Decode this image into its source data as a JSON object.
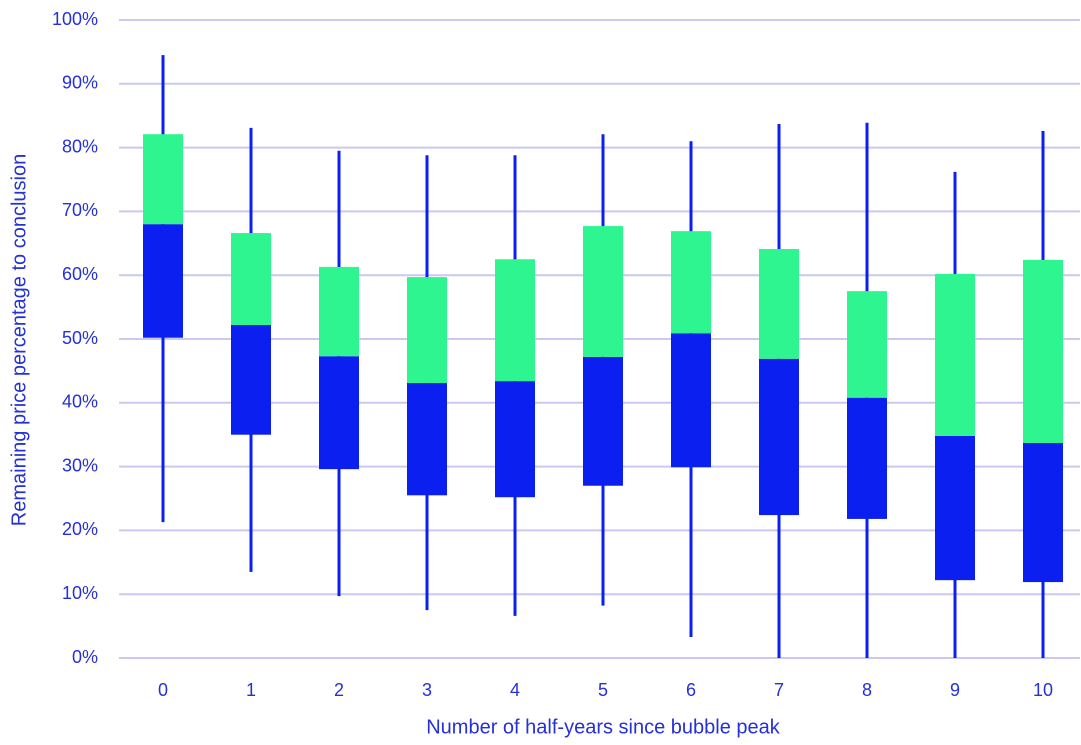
{
  "chart_data": {
    "type": "box",
    "x_label": "Number of half-years since bubble peak",
    "y_label": "Remaining price percentage to conclusion",
    "categories": [
      "0",
      "1",
      "2",
      "3",
      "4",
      "5",
      "6",
      "7",
      "8",
      "9",
      "10"
    ],
    "low": [
      21.3,
      13.5,
      9.7,
      7.5,
      6.6,
      8.2,
      3.3,
      0,
      0,
      0,
      0
    ],
    "q1": [
      50.2,
      35.0,
      29.6,
      25.5,
      25.2,
      27.0,
      29.9,
      22.4,
      21.8,
      12.2,
      11.9
    ],
    "median": [
      68.0,
      52.2,
      47.3,
      43.1,
      43.4,
      47.2,
      50.9,
      46.9,
      40.8,
      34.8,
      33.7
    ],
    "q3": [
      82.1,
      66.6,
      61.3,
      59.7,
      62.5,
      67.7,
      66.9,
      64.1,
      57.5,
      60.2,
      62.4
    ],
    "high": [
      94.5,
      83.1,
      79.5,
      78.8,
      78.8,
      82.1,
      81.0,
      83.7,
      83.9,
      76.2,
      82.6
    ],
    "lower_color": "#0a1ff0",
    "upper_color": "#2ef58f",
    "ylim": [
      0,
      100
    ],
    "yticks": [
      {
        "value": 0,
        "label": "0%"
      },
      {
        "value": 10,
        "label": "10%"
      },
      {
        "value": 20,
        "label": "20%"
      },
      {
        "value": 30,
        "label": "30%"
      },
      {
        "value": 40,
        "label": "40%"
      },
      {
        "value": 50,
        "label": "50%"
      },
      {
        "value": 60,
        "label": "60%"
      },
      {
        "value": 70,
        "label": "70%"
      },
      {
        "value": 80,
        "label": "80%"
      },
      {
        "value": 90,
        "label": "90%"
      },
      {
        "value": 100,
        "label": "100%"
      }
    ],
    "grid": true
  }
}
